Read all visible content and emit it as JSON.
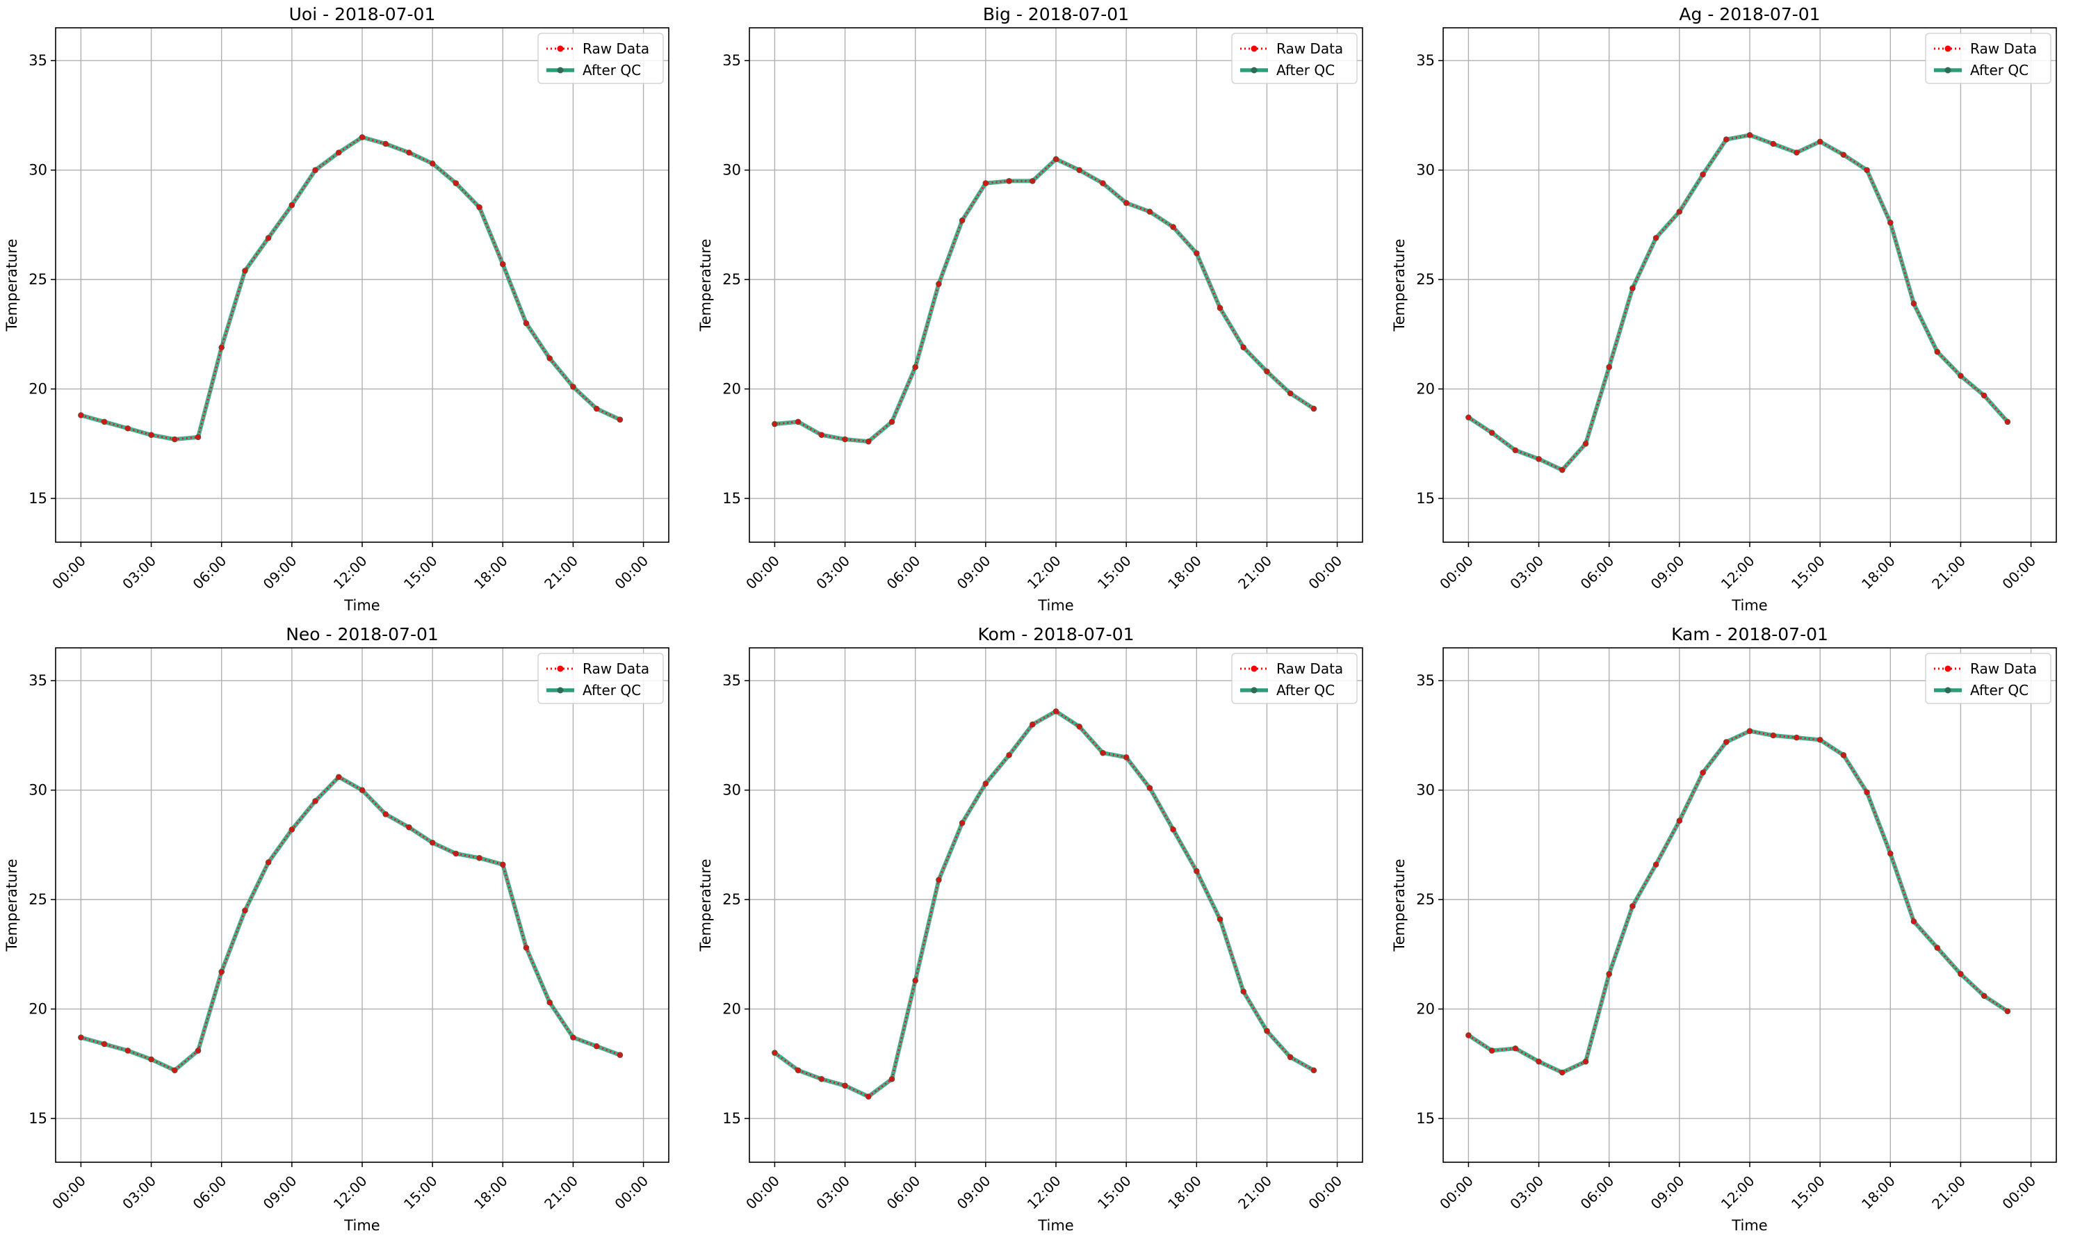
{
  "figure": {
    "legend_labels": {
      "raw": "Raw Data",
      "qc": "After QC"
    },
    "colors": {
      "raw": "#ff0000",
      "qc": "#2a9d7a",
      "marker": "#2d6b55",
      "grid": "#b0b0b0",
      "axis": "#000000"
    }
  },
  "chart_data": [
    {
      "type": "line",
      "title": "Uoi - 2018-07-01",
      "xlabel": "Time",
      "ylabel": "Temperature",
      "xlim": [
        "2018-07-01 00:00",
        "2018-07-01 24:00"
      ],
      "ylim": [
        13,
        36.5
      ],
      "x_ticks": [
        "00:00",
        "03:00",
        "06:00",
        "09:00",
        "12:00",
        "15:00",
        "18:00",
        "21:00",
        "00:00"
      ],
      "y_ticks": [
        15,
        20,
        25,
        30,
        35
      ],
      "grid": true,
      "legend": "upper right",
      "x": [
        "00:00",
        "01:00",
        "02:00",
        "03:00",
        "04:00",
        "05:00",
        "06:00",
        "07:00",
        "08:00",
        "09:00",
        "10:00",
        "11:00",
        "12:00",
        "13:00",
        "14:00",
        "15:00",
        "16:00",
        "17:00",
        "18:00",
        "19:00",
        "20:00",
        "21:00",
        "22:00",
        "23:00"
      ],
      "series": [
        {
          "name": "Raw Data",
          "values": [
            18.8,
            18.5,
            18.2,
            17.9,
            17.7,
            17.8,
            21.9,
            25.4,
            26.9,
            28.4,
            30.0,
            30.8,
            31.5,
            31.2,
            30.8,
            30.3,
            29.4,
            28.3,
            25.7,
            23.0,
            21.4,
            20.1,
            19.1,
            18.6
          ]
        },
        {
          "name": "After QC",
          "values": [
            18.8,
            18.5,
            18.2,
            17.9,
            17.7,
            17.8,
            21.9,
            25.4,
            26.9,
            28.4,
            30.0,
            30.8,
            31.5,
            31.2,
            30.8,
            30.3,
            29.4,
            28.3,
            25.7,
            23.0,
            21.4,
            20.1,
            19.1,
            18.6
          ]
        }
      ]
    },
    {
      "type": "line",
      "title": "Big - 2018-07-01",
      "xlabel": "Time",
      "ylabel": "Temperature",
      "xlim": [
        "2018-07-01 00:00",
        "2018-07-01 24:00"
      ],
      "ylim": [
        13,
        36.5
      ],
      "x_ticks": [
        "00:00",
        "03:00",
        "06:00",
        "09:00",
        "12:00",
        "15:00",
        "18:00",
        "21:00",
        "00:00"
      ],
      "y_ticks": [
        15,
        20,
        25,
        30,
        35
      ],
      "grid": true,
      "legend": "upper right",
      "x": [
        "00:00",
        "01:00",
        "02:00",
        "03:00",
        "04:00",
        "05:00",
        "06:00",
        "07:00",
        "08:00",
        "09:00",
        "10:00",
        "11:00",
        "12:00",
        "13:00",
        "14:00",
        "15:00",
        "16:00",
        "17:00",
        "18:00",
        "19:00",
        "20:00",
        "21:00",
        "22:00",
        "23:00"
      ],
      "series": [
        {
          "name": "Raw Data",
          "values": [
            18.4,
            18.5,
            17.9,
            17.7,
            17.6,
            18.5,
            21.0,
            24.8,
            27.7,
            29.4,
            29.5,
            29.5,
            30.5,
            30.0,
            29.4,
            28.5,
            28.1,
            27.4,
            26.2,
            23.7,
            21.9,
            20.8,
            19.8,
            19.1
          ]
        },
        {
          "name": "After QC",
          "values": [
            18.4,
            18.5,
            17.9,
            17.7,
            17.6,
            18.5,
            21.0,
            24.8,
            27.7,
            29.4,
            29.5,
            29.5,
            30.5,
            30.0,
            29.4,
            28.5,
            28.1,
            27.4,
            26.2,
            23.7,
            21.9,
            20.8,
            19.8,
            19.1
          ]
        }
      ]
    },
    {
      "type": "line",
      "title": "Ag - 2018-07-01",
      "xlabel": "Time",
      "ylabel": "Temperature",
      "xlim": [
        "2018-07-01 00:00",
        "2018-07-01 24:00"
      ],
      "ylim": [
        13,
        36.5
      ],
      "x_ticks": [
        "00:00",
        "03:00",
        "06:00",
        "09:00",
        "12:00",
        "15:00",
        "18:00",
        "21:00",
        "00:00"
      ],
      "y_ticks": [
        15,
        20,
        25,
        30,
        35
      ],
      "grid": true,
      "legend": "upper right",
      "x": [
        "00:00",
        "01:00",
        "02:00",
        "03:00",
        "04:00",
        "05:00",
        "06:00",
        "07:00",
        "08:00",
        "09:00",
        "10:00",
        "11:00",
        "12:00",
        "13:00",
        "14:00",
        "15:00",
        "16:00",
        "17:00",
        "18:00",
        "19:00",
        "20:00",
        "21:00",
        "22:00",
        "23:00"
      ],
      "series": [
        {
          "name": "Raw Data",
          "values": [
            18.7,
            18.0,
            17.2,
            16.8,
            16.3,
            17.5,
            21.0,
            24.6,
            26.9,
            28.1,
            29.8,
            31.4,
            31.6,
            31.2,
            30.8,
            31.3,
            30.7,
            30.0,
            27.6,
            23.9,
            21.7,
            20.6,
            19.7,
            18.5
          ]
        },
        {
          "name": "After QC",
          "values": [
            18.7,
            18.0,
            17.2,
            16.8,
            16.3,
            17.5,
            21.0,
            24.6,
            26.9,
            28.1,
            29.8,
            31.4,
            31.6,
            31.2,
            30.8,
            31.3,
            30.7,
            30.0,
            27.6,
            23.9,
            21.7,
            20.6,
            19.7,
            18.5
          ]
        }
      ]
    },
    {
      "type": "line",
      "title": "Neo - 2018-07-01",
      "xlabel": "Time",
      "ylabel": "Temperature",
      "xlim": [
        "2018-07-01 00:00",
        "2018-07-01 24:00"
      ],
      "ylim": [
        13,
        36.5
      ],
      "x_ticks": [
        "00:00",
        "03:00",
        "06:00",
        "09:00",
        "12:00",
        "15:00",
        "18:00",
        "21:00",
        "00:00"
      ],
      "y_ticks": [
        15,
        20,
        25,
        30,
        35
      ],
      "grid": true,
      "legend": "upper right",
      "x": [
        "00:00",
        "01:00",
        "02:00",
        "03:00",
        "04:00",
        "05:00",
        "06:00",
        "07:00",
        "08:00",
        "09:00",
        "10:00",
        "11:00",
        "12:00",
        "13:00",
        "14:00",
        "15:00",
        "16:00",
        "17:00",
        "18:00",
        "19:00",
        "20:00",
        "21:00",
        "22:00",
        "23:00"
      ],
      "series": [
        {
          "name": "Raw Data",
          "values": [
            18.7,
            18.4,
            18.1,
            17.7,
            17.2,
            18.1,
            21.7,
            24.5,
            26.7,
            28.2,
            29.5,
            30.6,
            30.0,
            28.9,
            28.3,
            27.6,
            27.1,
            26.9,
            26.6,
            22.8,
            20.3,
            18.7,
            18.3,
            17.9
          ]
        },
        {
          "name": "After QC",
          "values": [
            18.7,
            18.4,
            18.1,
            17.7,
            17.2,
            18.1,
            21.7,
            24.5,
            26.7,
            28.2,
            29.5,
            30.6,
            30.0,
            28.9,
            28.3,
            27.6,
            27.1,
            26.9,
            26.6,
            22.8,
            20.3,
            18.7,
            18.3,
            17.9
          ]
        }
      ]
    },
    {
      "type": "line",
      "title": "Kom - 2018-07-01",
      "xlabel": "Time",
      "ylabel": "Temperature",
      "xlim": [
        "2018-07-01 00:00",
        "2018-07-01 24:00"
      ],
      "ylim": [
        13,
        36.5
      ],
      "x_ticks": [
        "00:00",
        "03:00",
        "06:00",
        "09:00",
        "12:00",
        "15:00",
        "18:00",
        "21:00",
        "00:00"
      ],
      "y_ticks": [
        15,
        20,
        25,
        30,
        35
      ],
      "grid": true,
      "legend": "upper right",
      "x": [
        "00:00",
        "01:00",
        "02:00",
        "03:00",
        "04:00",
        "05:00",
        "06:00",
        "07:00",
        "08:00",
        "09:00",
        "10:00",
        "11:00",
        "12:00",
        "13:00",
        "14:00",
        "15:00",
        "16:00",
        "17:00",
        "18:00",
        "19:00",
        "20:00",
        "21:00",
        "22:00",
        "23:00"
      ],
      "series": [
        {
          "name": "Raw Data",
          "values": [
            18.0,
            17.2,
            16.8,
            16.5,
            16.0,
            16.8,
            21.3,
            25.9,
            28.5,
            30.3,
            31.6,
            33.0,
            33.6,
            32.9,
            31.7,
            31.5,
            30.1,
            28.2,
            26.3,
            24.1,
            20.8,
            19.0,
            17.8,
            17.2
          ]
        },
        {
          "name": "After QC",
          "values": [
            18.0,
            17.2,
            16.8,
            16.5,
            16.0,
            16.8,
            21.3,
            25.9,
            28.5,
            30.3,
            31.6,
            33.0,
            33.6,
            32.9,
            31.7,
            31.5,
            30.1,
            28.2,
            26.3,
            24.1,
            20.8,
            19.0,
            17.8,
            17.2
          ]
        }
      ]
    },
    {
      "type": "line",
      "title": "Kam - 2018-07-01",
      "xlabel": "Time",
      "ylabel": "Temperature",
      "xlim": [
        "2018-07-01 00:00",
        "2018-07-01 24:00"
      ],
      "ylim": [
        13,
        36.5
      ],
      "x_ticks": [
        "00:00",
        "03:00",
        "06:00",
        "09:00",
        "12:00",
        "15:00",
        "18:00",
        "21:00",
        "00:00"
      ],
      "y_ticks": [
        15,
        20,
        25,
        30,
        35
      ],
      "grid": true,
      "legend": "upper right",
      "x": [
        "00:00",
        "01:00",
        "02:00",
        "03:00",
        "04:00",
        "05:00",
        "06:00",
        "07:00",
        "08:00",
        "09:00",
        "10:00",
        "11:00",
        "12:00",
        "13:00",
        "14:00",
        "15:00",
        "16:00",
        "17:00",
        "18:00",
        "19:00",
        "20:00",
        "21:00",
        "22:00",
        "23:00"
      ],
      "series": [
        {
          "name": "Raw Data",
          "values": [
            18.8,
            18.1,
            18.2,
            17.6,
            17.1,
            17.6,
            21.6,
            24.7,
            26.6,
            28.6,
            30.8,
            32.2,
            32.7,
            32.5,
            32.4,
            32.3,
            31.6,
            29.9,
            27.1,
            24.0,
            22.8,
            21.6,
            20.6,
            19.9
          ]
        },
        {
          "name": "After QC",
          "values": [
            18.8,
            18.1,
            18.2,
            17.6,
            17.1,
            17.6,
            21.6,
            24.7,
            26.6,
            28.6,
            30.8,
            32.2,
            32.7,
            32.5,
            32.4,
            32.3,
            31.6,
            29.9,
            27.1,
            24.0,
            22.8,
            21.6,
            20.6,
            19.9
          ]
        }
      ]
    }
  ]
}
